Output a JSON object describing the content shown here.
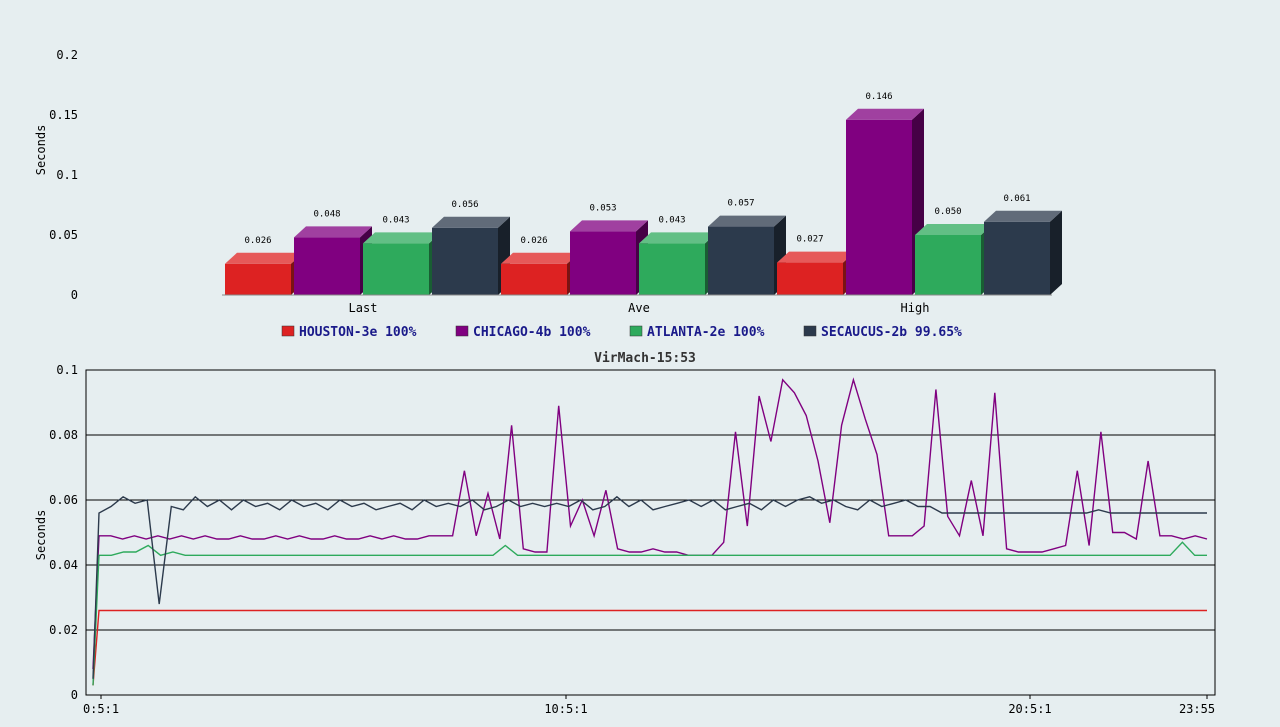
{
  "chart_data": [
    {
      "type": "bar",
      "ylabel": "Seconds",
      "ylim": [
        0,
        0.25
      ],
      "yticks": [
        "0",
        "0.05",
        "0.1",
        "0.15",
        "0.2"
      ],
      "categories": [
        "Last",
        "Ave",
        "High"
      ],
      "series": [
        {
          "name": "HOUSTON-3e 100%",
          "color": "#dd2222",
          "values": [
            0.026,
            0.026,
            0.027
          ],
          "labels": [
            "0.026",
            "0.026",
            "0.027"
          ]
        },
        {
          "name": "CHICAGO-4b 100%",
          "color": "#800080",
          "values": [
            0.048,
            0.053,
            0.146
          ],
          "labels": [
            "0.048",
            "0.053",
            "0.146"
          ]
        },
        {
          "name": "ATLANTA-2e 100%",
          "color": "#2eaa5c",
          "values": [
            0.043,
            0.043,
            0.05
          ],
          "labels": [
            "0.043",
            "0.043",
            "0.050"
          ]
        },
        {
          "name": "SECAUCUS-2b 99.65%",
          "color": "#2c3a4c",
          "values": [
            0.056,
            0.057,
            0.061
          ],
          "labels": [
            "0.056",
            "0.057",
            "0.061"
          ]
        }
      ],
      "legend": "bottom"
    },
    {
      "type": "line",
      "title": "VirMach-15:53",
      "ylabel": "Seconds",
      "ylim": [
        0,
        0.1
      ],
      "yticks": [
        "0",
        "0.02",
        "0.04",
        "0.06",
        "0.08",
        "0.1"
      ],
      "xticks": [
        "0:5:1",
        "10:5:1",
        "20:5:1",
        "23:55"
      ],
      "grid": true,
      "series": [
        {
          "name": "HOUSTON-3e",
          "color": "#dd2222",
          "values": [
            0.003,
            0.026,
            0.026,
            0.026,
            0.026,
            0.026,
            0.026,
            0.026,
            0.026,
            0.026,
            0.026,
            0.026,
            0.026,
            0.026,
            0.026,
            0.026,
            0.026,
            0.026,
            0.026,
            0.026,
            0.026,
            0.026,
            0.026,
            0.026,
            0.026,
            0.026,
            0.026,
            0.026,
            0.026,
            0.026,
            0.026,
            0.026,
            0.026,
            0.026,
            0.026,
            0.026,
            0.026,
            0.026,
            0.026,
            0.026,
            0.026,
            0.026,
            0.026,
            0.026,
            0.026,
            0.026,
            0.026,
            0.026,
            0.026,
            0.026,
            0.026,
            0.026,
            0.026,
            0.026,
            0.026,
            0.026,
            0.026,
            0.026,
            0.026,
            0.026,
            0.026,
            0.026,
            0.026,
            0.026,
            0.026,
            0.026,
            0.026,
            0.026,
            0.026,
            0.026,
            0.026,
            0.026,
            0.026,
            0.026,
            0.026,
            0.026,
            0.026,
            0.026,
            0.026,
            0.026,
            0.026
          ]
        },
        {
          "name": "CHICAGO-4b",
          "color": "#800080",
          "values": [
            0.008,
            0.049,
            0.049,
            0.048,
            0.049,
            0.048,
            0.049,
            0.048,
            0.049,
            0.048,
            0.049,
            0.048,
            0.048,
            0.049,
            0.048,
            0.048,
            0.049,
            0.048,
            0.049,
            0.048,
            0.048,
            0.049,
            0.048,
            0.048,
            0.049,
            0.048,
            0.049,
            0.048,
            0.048,
            0.049,
            0.049,
            0.049,
            0.069,
            0.049,
            0.062,
            0.048,
            0.083,
            0.045,
            0.044,
            0.044,
            0.089,
            0.052,
            0.06,
            0.049,
            0.063,
            0.045,
            0.044,
            0.044,
            0.045,
            0.044,
            0.044,
            0.043,
            0.043,
            0.043,
            0.047,
            0.081,
            0.052,
            0.092,
            0.078,
            0.097,
            0.093,
            0.086,
            0.072,
            0.053,
            0.083,
            0.097,
            0.085,
            0.074,
            0.049,
            0.049,
            0.049,
            0.052,
            0.094,
            0.055,
            0.049,
            0.066,
            0.049,
            0.093,
            0.045,
            0.044,
            0.044,
            0.044,
            0.045,
            0.046,
            0.069,
            0.046,
            0.081,
            0.05,
            0.05,
            0.048,
            0.072,
            0.049,
            0.049,
            0.048,
            0.049,
            0.048
          ]
        },
        {
          "name": "ATLANTA-2e",
          "color": "#2eaa5c",
          "values": [
            0.003,
            0.043,
            0.043,
            0.044,
            0.044,
            0.046,
            0.043,
            0.044,
            0.043,
            0.043,
            0.043,
            0.043,
            0.043,
            0.043,
            0.043,
            0.043,
            0.043,
            0.043,
            0.043,
            0.043,
            0.043,
            0.043,
            0.043,
            0.043,
            0.043,
            0.043,
            0.043,
            0.043,
            0.043,
            0.043,
            0.043,
            0.043,
            0.043,
            0.043,
            0.046,
            0.043,
            0.043,
            0.043,
            0.043,
            0.043,
            0.043,
            0.043,
            0.043,
            0.043,
            0.043,
            0.043,
            0.043,
            0.043,
            0.043,
            0.043,
            0.043,
            0.043,
            0.043,
            0.043,
            0.043,
            0.043,
            0.043,
            0.043,
            0.043,
            0.043,
            0.043,
            0.043,
            0.043,
            0.043,
            0.043,
            0.043,
            0.043,
            0.043,
            0.043,
            0.043,
            0.043,
            0.043,
            0.043,
            0.043,
            0.043,
            0.043,
            0.043,
            0.043,
            0.043,
            0.043,
            0.043,
            0.043,
            0.043,
            0.043,
            0.043,
            0.043,
            0.043,
            0.043,
            0.043,
            0.047,
            0.043,
            0.043
          ]
        },
        {
          "name": "SECAUCUS-2b",
          "color": "#2c3a4c",
          "values": [
            0.005,
            0.056,
            0.058,
            0.061,
            0.059,
            0.06,
            0.028,
            0.058,
            0.057,
            0.061,
            0.058,
            0.06,
            0.057,
            0.06,
            0.058,
            0.059,
            0.057,
            0.06,
            0.058,
            0.059,
            0.057,
            0.06,
            0.058,
            0.059,
            0.057,
            0.058,
            0.059,
            0.057,
            0.06,
            0.058,
            0.059,
            0.058,
            0.06,
            0.057,
            0.058,
            0.06,
            0.058,
            0.059,
            0.058,
            0.059,
            0.058,
            0.06,
            0.057,
            0.058,
            0.061,
            0.058,
            0.06,
            0.057,
            0.058,
            0.059,
            0.06,
            0.058,
            0.06,
            0.057,
            0.058,
            0.059,
            0.057,
            0.06,
            0.058,
            0.06,
            0.061,
            0.059,
            0.06,
            0.058,
            0.057,
            0.06,
            0.058,
            0.059,
            0.06,
            0.058,
            0.058,
            0.056,
            0.056,
            0.056,
            0.056,
            0.056,
            0.056,
            0.056,
            0.056,
            0.056,
            0.056,
            0.056,
            0.056,
            0.056,
            0.057,
            0.056,
            0.056,
            0.056,
            0.056,
            0.056,
            0.056,
            0.056,
            0.056,
            0.056
          ]
        }
      ]
    }
  ]
}
